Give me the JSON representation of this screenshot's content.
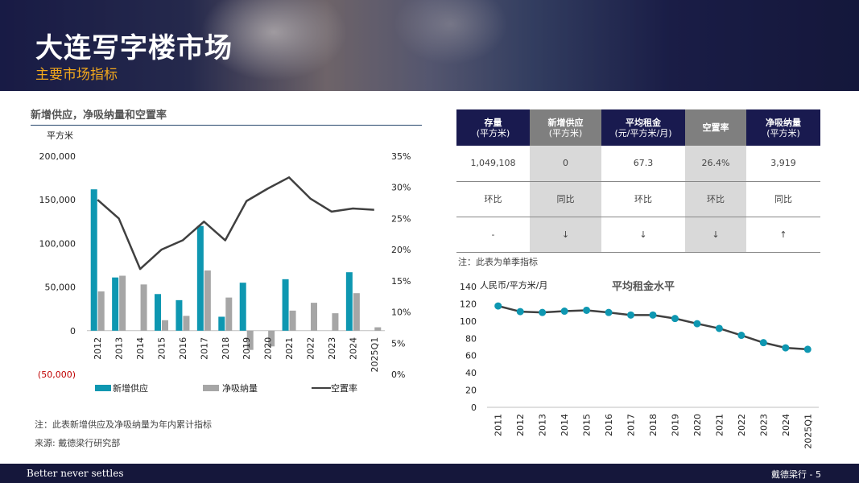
{
  "header": {
    "title": "大连写字楼市场",
    "subtitle": "主要市场指标"
  },
  "left_panel": {
    "section_title": "新增供应，净吸纳量和空置率",
    "unit": "平方米",
    "note": "注：此表新增供应及净吸纳量为年内累计指标",
    "source": "来源: 戴德梁行研究部"
  },
  "kpi_table": {
    "headers": [
      {
        "label": "存量",
        "sub": "(平方米)"
      },
      {
        "label": "新增供应",
        "sub": "(平方米)"
      },
      {
        "label": "平均租金",
        "sub": "(元/平方米/月)"
      },
      {
        "label": "空置率",
        "sub": ""
      },
      {
        "label": "净吸纳量",
        "sub": "(平方米)"
      }
    ],
    "values": [
      "1,049,108",
      "0",
      "67.3",
      "26.4%",
      "3,919"
    ],
    "comparison": [
      "环比",
      "同比",
      "环比",
      "环比",
      "同比"
    ],
    "trend": [
      "-",
      "↓",
      "↓",
      "↓",
      "↑"
    ],
    "note": "注：此表为单季指标"
  },
  "footer": {
    "slogan": "Better never settles",
    "page": "戴德梁行 - 5"
  },
  "colors": {
    "navy": "#191a4f",
    "teal": "#0e97b1",
    "grey_bar": "#a6a6a6",
    "orange": "#f2a81c",
    "negative": "#c00000"
  },
  "chart_data": [
    {
      "type": "bar",
      "title": "",
      "ylabel": "平方米",
      "categories": [
        "2012",
        "2013",
        "2014",
        "2015",
        "2016",
        "2017",
        "2018",
        "2019",
        "2020",
        "2021",
        "2022",
        "2023",
        "2024",
        "2025Q1"
      ],
      "series": [
        {
          "name": "新增供应",
          "type": "bar",
          "axis": "left",
          "values": [
            162000,
            61000,
            0,
            42000,
            35000,
            120000,
            16000,
            55000,
            0,
            59000,
            0,
            0,
            67000,
            0
          ]
        },
        {
          "name": "净吸纳量",
          "type": "bar",
          "axis": "left",
          "values": [
            45000,
            63000,
            53000,
            12000,
            17000,
            69000,
            38000,
            -22000,
            -18000,
            23000,
            32000,
            20000,
            43000,
            3919
          ]
        },
        {
          "name": "空置率",
          "type": "line",
          "axis": "right",
          "values": [
            28.0,
            25.0,
            16.9,
            20.0,
            21.5,
            24.5,
            21.5,
            27.8,
            29.8,
            31.6,
            28.2,
            26.1,
            26.6,
            26.4
          ]
        }
      ],
      "yleft": {
        "ylim": [
          -50000,
          200000
        ],
        "ticks": [
          200000,
          150000,
          100000,
          50000,
          0,
          -50000
        ],
        "tick_labels": [
          "200,000",
          "150,000",
          "100,000",
          "50,000",
          "0",
          "(50,000)"
        ]
      },
      "yright": {
        "ylim": [
          0,
          35
        ],
        "ticks": [
          35,
          30,
          25,
          20,
          15,
          10,
          5,
          0
        ],
        "tick_labels": [
          "35%",
          "30%",
          "25%",
          "20%",
          "15%",
          "10%",
          "5%",
          "0%"
        ]
      },
      "legend": "bottom"
    },
    {
      "type": "line",
      "title": "平均租金水平",
      "ylabel": "人民币/平方米/月",
      "categories": [
        "2011",
        "2012",
        "2013",
        "2014",
        "2015",
        "2016",
        "2017",
        "2018",
        "2019",
        "2020",
        "2021",
        "2022",
        "2023",
        "2024",
        "2025Q1"
      ],
      "series": [
        {
          "name": "平均租金",
          "values": [
            117.5,
            111.0,
            110.0,
            111.5,
            112.5,
            110.0,
            107.0,
            107.0,
            103.0,
            97.0,
            91.5,
            83.5,
            75.0,
            69.0,
            67.3
          ]
        }
      ],
      "ylim": [
        0,
        140
      ],
      "ticks": [
        0,
        20,
        40,
        60,
        80,
        100,
        120,
        140
      ],
      "grid": false
    }
  ]
}
